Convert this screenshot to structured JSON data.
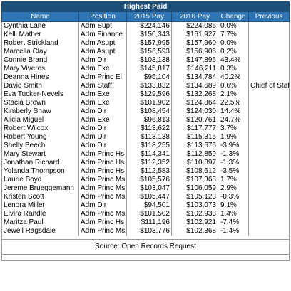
{
  "title": "Highest Paid",
  "columns": [
    "Name",
    "Position",
    "2015 Pay",
    "2016 Pay",
    "Change",
    "Previous"
  ],
  "rows": [
    [
      "Cynthia Lane",
      "Adm Supt",
      "$224,146",
      "$224,086",
      "0.0%",
      ""
    ],
    [
      "Kelli Mather",
      "Adm Finance",
      "$150,343",
      "$161,927",
      "7.7%",
      ""
    ],
    [
      "Robert Strickland",
      "Adm Asupt",
      "$157,995",
      "$157,960",
      "0.0%",
      ""
    ],
    [
      "Marcella Clay",
      "Adm Asupt",
      "$156,593",
      "$156,906",
      "0.2%",
      ""
    ],
    [
      "Connie Brand",
      "Adm Dir",
      "$103,138",
      "$147,896",
      "43.4%",
      ""
    ],
    [
      "Mary Viveros",
      "Adm Exe",
      "$145,817",
      "$146,211",
      "0.3%",
      ""
    ],
    [
      "Deanna Hines",
      "Adm Princ El",
      "$96,104",
      "$134,784",
      "40.2%",
      ""
    ],
    [
      "David Smith",
      "Adm Staff",
      "$133,832",
      "$134,689",
      "0.6%",
      "Chief of Staff"
    ],
    [
      "Eva Tucker-Nevels",
      "Adm Exe",
      "$129,596",
      "$132,268",
      "2.1%",
      ""
    ],
    [
      "Stacia Brown",
      "Adm Exe",
      "$101,902",
      "$124,864",
      "22.5%",
      ""
    ],
    [
      "Kimberly Shaw",
      "Adm Dir",
      "$108,454",
      "$124,030",
      "14.4%",
      ""
    ],
    [
      "Alicia Miguel",
      "Adm Exe",
      "$96,813",
      "$120,761",
      "24.7%",
      ""
    ],
    [
      "Robert Wilcox",
      "Adm Dir",
      "$113,622",
      "$117,777",
      "3.7%",
      ""
    ],
    [
      "Robert Young",
      "Adm Dir",
      "$113,138",
      "$115,315",
      "1.9%",
      ""
    ],
    [
      "Shelly Beech",
      "Adm Dir",
      "$118,255",
      "$113,676",
      "-3.9%",
      ""
    ],
    [
      "Mary Stewart",
      "Adm Princ Hs",
      "$114,341",
      "$112,859",
      "-1.3%",
      ""
    ],
    [
      "Jonathan Richard",
      "Adm Princ Hs",
      "$112,352",
      "$110,897",
      "-1.3%",
      ""
    ],
    [
      "Yolanda Thompson",
      "Adm Princ Hs",
      "$112,583",
      "$108,612",
      "-3.5%",
      ""
    ],
    [
      "Laurie Boyd",
      "Adm Princ Ms",
      "$105,576",
      "$107,368",
      "1.7%",
      ""
    ],
    [
      "Jereme Brueggemann",
      "Adm Princ Ms",
      "$103,047",
      "$106,059",
      "2.9%",
      ""
    ],
    [
      "Kristen Scott",
      "Adm Princ Ms",
      "$105,447",
      "$105,123",
      "-0.3%",
      ""
    ],
    [
      "Lenora Miller",
      "Adm Dir",
      "$94,501",
      "$103,073",
      "9.1%",
      ""
    ],
    [
      "Elvira Randle",
      "Adm Princ Ms",
      "$101,502",
      "$102,933",
      "1.4%",
      ""
    ],
    [
      "Maritza Paul",
      "Adm Princ Hs",
      "$111,196",
      "$102,921",
      "-7.4%",
      ""
    ],
    [
      "Jewell Ragsdale",
      "Adm Princ Ms",
      "$103,776",
      "$102,368",
      "-1.4%",
      ""
    ]
  ],
  "source": "Source: Open Records Request",
  "colors": {
    "title_bg": "#1f4e79",
    "header_bg": "#2e75b6",
    "header_text": "#ffffff",
    "grid": "#9a9a9a"
  }
}
